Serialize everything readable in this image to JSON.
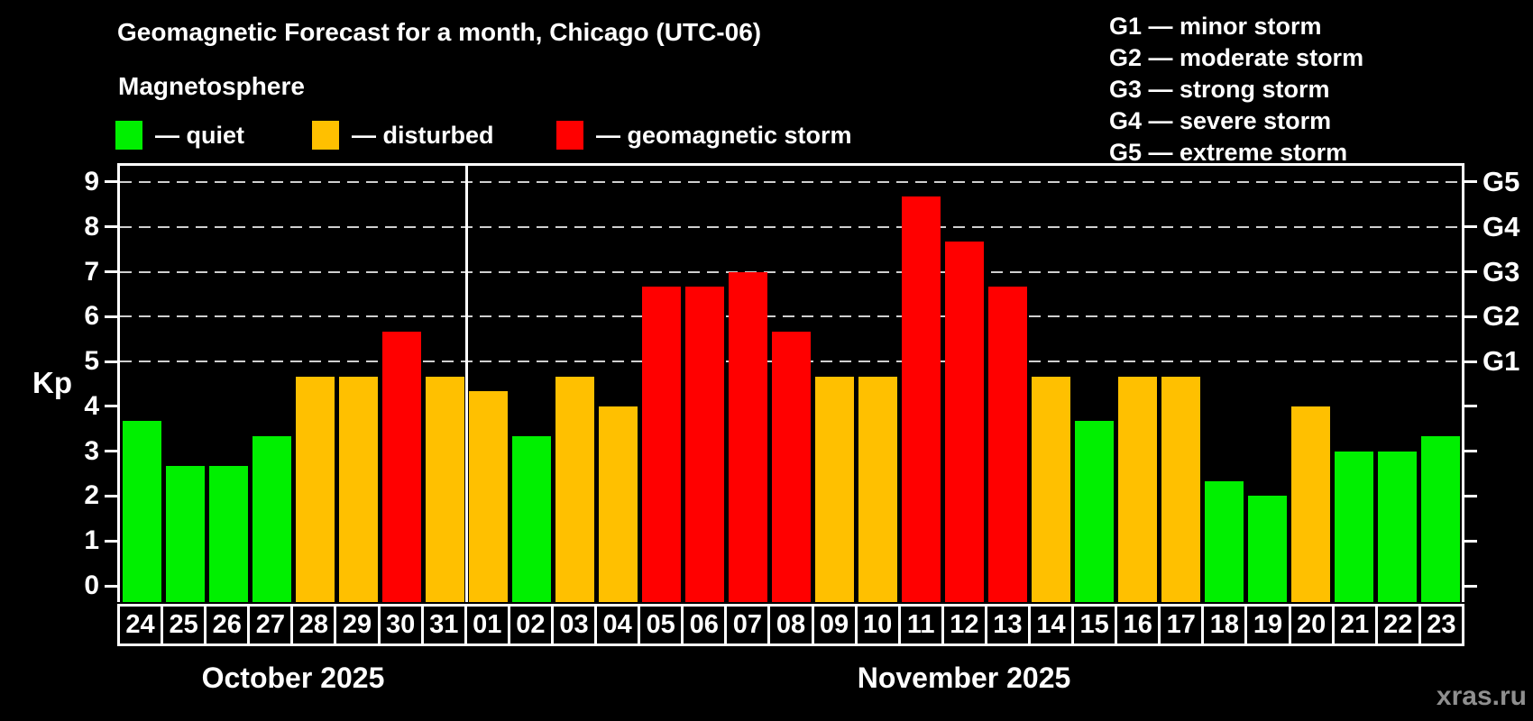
{
  "title": "Geomagnetic Forecast for a month, Chicago (UTC-06)",
  "subtitle": "Magnetosphere",
  "legend": {
    "items": [
      {
        "name": "quiet",
        "color": "#00f000",
        "label": "— quiet"
      },
      {
        "name": "disturbed",
        "color": "#ffc000",
        "label": "— disturbed"
      },
      {
        "name": "storm",
        "color": "#ff0000",
        "label": "— geomagnetic storm"
      }
    ]
  },
  "g_legend": {
    "lines": [
      "G1 — minor storm",
      "G2 — moderate storm",
      "G3 — strong storm",
      "G4 — severe storm",
      "G5 — extreme storm"
    ]
  },
  "watermark": "xras.ru",
  "chart_data": {
    "type": "bar",
    "title": "Geomagnetic Forecast for a month, Chicago (UTC-06)",
    "ylabel": "Kp",
    "ylim": [
      0,
      9.4
    ],
    "y_ticks": [
      0,
      1,
      2,
      3,
      4,
      5,
      6,
      7,
      8,
      9
    ],
    "gridline_kp": [
      5,
      6,
      7,
      8,
      9
    ],
    "right_axis_labels": [
      {
        "text": "G1",
        "kp": 5
      },
      {
        "text": "G2",
        "kp": 6
      },
      {
        "text": "G3",
        "kp": 7
      },
      {
        "text": "G4",
        "kp": 8
      },
      {
        "text": "G5",
        "kp": 9
      }
    ],
    "months": [
      {
        "label": "October 2025",
        "days": 8
      },
      {
        "label": "November 2025",
        "days": 23
      }
    ],
    "categories": [
      "Oct 24",
      "Oct 25",
      "Oct 26",
      "Oct 27",
      "Oct 28",
      "Oct 29",
      "Oct 30",
      "Oct 31",
      "Nov 01",
      "Nov 02",
      "Nov 03",
      "Nov 04",
      "Nov 05",
      "Nov 06",
      "Nov 07",
      "Nov 08",
      "Nov 09",
      "Nov 10",
      "Nov 11",
      "Nov 12",
      "Nov 13",
      "Nov 14",
      "Nov 15",
      "Nov 16",
      "Nov 17",
      "Nov 18",
      "Nov 19",
      "Nov 20",
      "Nov 21",
      "Nov 22",
      "Nov 23"
    ],
    "day_labels": [
      "24",
      "25",
      "26",
      "27",
      "28",
      "29",
      "30",
      "31",
      "01",
      "02",
      "03",
      "04",
      "05",
      "06",
      "07",
      "08",
      "09",
      "10",
      "11",
      "12",
      "13",
      "14",
      "15",
      "16",
      "17",
      "18",
      "19",
      "20",
      "21",
      "22",
      "23"
    ],
    "values": [
      3.67,
      2.67,
      2.67,
      3.33,
      4.67,
      4.67,
      5.67,
      4.67,
      4.33,
      3.33,
      4.67,
      4.0,
      6.67,
      6.67,
      7.0,
      5.67,
      4.67,
      4.67,
      8.67,
      7.67,
      6.67,
      4.67,
      3.67,
      4.67,
      4.67,
      2.33,
      2.0,
      4.0,
      3.0,
      3.0,
      3.33
    ],
    "statuses": [
      "quiet",
      "quiet",
      "quiet",
      "quiet",
      "disturbed",
      "disturbed",
      "storm",
      "disturbed",
      "disturbed",
      "quiet",
      "disturbed",
      "disturbed",
      "storm",
      "storm",
      "storm",
      "storm",
      "disturbed",
      "disturbed",
      "storm",
      "storm",
      "storm",
      "disturbed",
      "quiet",
      "disturbed",
      "disturbed",
      "quiet",
      "quiet",
      "disturbed",
      "quiet",
      "quiet",
      "quiet"
    ],
    "colors": {
      "quiet": "#00f000",
      "disturbed": "#ffc000",
      "storm": "#ff0000"
    }
  }
}
